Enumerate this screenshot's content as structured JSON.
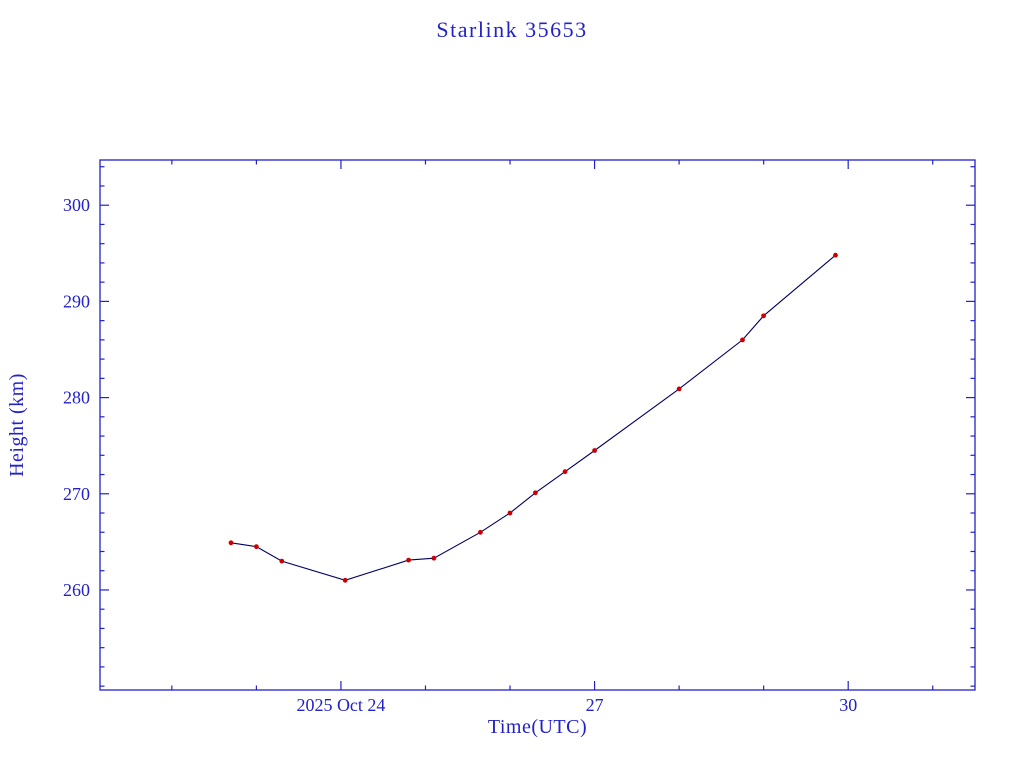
{
  "page": {
    "background": "#ffffff"
  },
  "chart_data": {
    "type": "line",
    "title": "Starlink 35653",
    "xlabel": "Time(UTC)",
    "ylabel": "Height (km)",
    "x_unit": "days relative to 2025 Oct 24 00:00 UTC",
    "x": [
      -1.3,
      -1.0,
      -0.7,
      0.05,
      0.8,
      1.1,
      1.65,
      2.0,
      2.3,
      2.65,
      3.0,
      4.0,
      4.75,
      5.0,
      5.85
    ],
    "y": [
      264.9,
      264.5,
      263.0,
      261.0,
      263.1,
      263.3,
      266.0,
      268.0,
      270.1,
      272.3,
      274.5,
      280.9,
      286.0,
      288.5,
      294.8
    ],
    "xlim": [
      -2.85,
      7.5
    ],
    "ylim": [
      249.6,
      304.7
    ],
    "x_major_ticks": [
      {
        "value": 0,
        "label": "2025 Oct 24"
      },
      {
        "value": 3,
        "label": "27"
      },
      {
        "value": 6,
        "label": "30"
      }
    ],
    "x_minor_step": 1,
    "y_major_ticks": [
      {
        "value": 260,
        "label": "260"
      },
      {
        "value": 270,
        "label": "270"
      },
      {
        "value": 280,
        "label": "280"
      },
      {
        "value": 290,
        "label": "290"
      },
      {
        "value": 300,
        "label": "300"
      }
    ],
    "y_minor_step": 2,
    "grid": false,
    "legend": false,
    "marker_style": "red-dot",
    "colors": {
      "axis": "#2222c8",
      "line": "#000066",
      "marker": "#cc0000",
      "background": "#ffffff"
    }
  }
}
